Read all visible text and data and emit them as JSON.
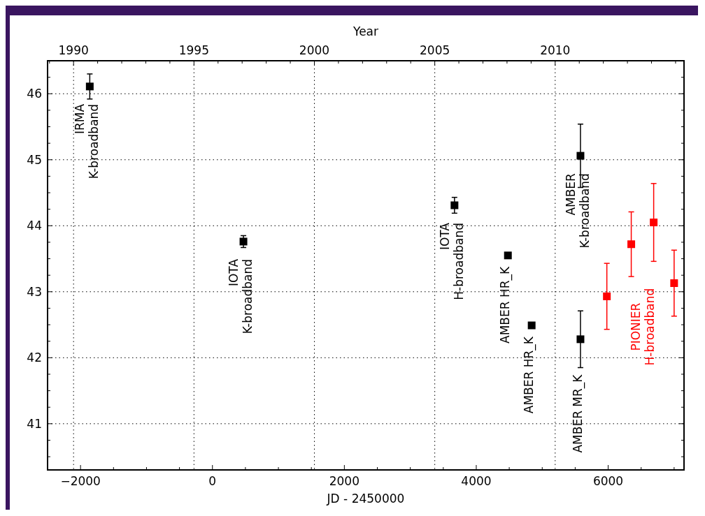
{
  "chart_data": {
    "type": "scatter",
    "xlabel": "JD - 2450000",
    "x2label": "Year",
    "xlim": [
      -2500,
      7150
    ],
    "xticks": [
      {
        "value": -2500,
        "label": null
      },
      -2000,
      {
        "value": -1500,
        "label": null
      },
      {
        "value": -1000,
        "label": null
      },
      {
        "value": -500,
        "label": null
      },
      0,
      {
        "value": 500,
        "label": null
      },
      {
        "value": 1000,
        "label": null
      },
      {
        "value": 1500,
        "label": null
      },
      2000,
      {
        "value": 2500,
        "label": null
      },
      {
        "value": 3000,
        "label": null
      },
      {
        "value": 3500,
        "label": null
      },
      4000,
      {
        "value": 4500,
        "label": null
      },
      {
        "value": 5000,
        "label": null
      },
      {
        "value": 5500,
        "label": null
      },
      6000,
      {
        "value": 6500,
        "label": null
      },
      {
        "value": 7000,
        "label": null
      }
    ],
    "x2lim": [
      1988.92,
      2015.35
    ],
    "x2ticks": [
      {
        "value": 1989,
        "label": null
      },
      1990,
      {
        "value": 1991,
        "label": null
      },
      {
        "value": 1992,
        "label": null
      },
      {
        "value": 1993,
        "label": null
      },
      {
        "value": 1994,
        "label": null
      },
      1995,
      {
        "value": 1996,
        "label": null
      },
      {
        "value": 1997,
        "label": null
      },
      {
        "value": 1998,
        "label": null
      },
      {
        "value": 1999,
        "label": null
      },
      2000,
      {
        "value": 2001,
        "label": null
      },
      {
        "value": 2002,
        "label": null
      },
      {
        "value": 2003,
        "label": null
      },
      {
        "value": 2004,
        "label": null
      },
      2005,
      {
        "value": 2006,
        "label": null
      },
      {
        "value": 2007,
        "label": null
      },
      {
        "value": 2008,
        "label": null
      },
      {
        "value": 2009,
        "label": null
      },
      2010,
      {
        "value": 2011,
        "label": null
      },
      {
        "value": 2012,
        "label": null
      },
      {
        "value": 2013,
        "label": null
      },
      {
        "value": 2014,
        "label": null
      },
      {
        "value": 2015,
        "label": null
      }
    ],
    "ylim": [
      40.3,
      46.5
    ],
    "yticks": [
      {
        "value": 40.5,
        "label": null
      },
      {
        "value": 40.75,
        "label": null
      },
      41,
      {
        "value": 41.25,
        "label": null
      },
      {
        "value": 41.5,
        "label": null
      },
      {
        "value": 41.75,
        "label": null
      },
      42,
      {
        "value": 42.25,
        "label": null
      },
      {
        "value": 42.5,
        "label": null
      },
      {
        "value": 42.75,
        "label": null
      },
      43,
      {
        "value": 43.25,
        "label": null
      },
      {
        "value": 43.5,
        "label": null
      },
      {
        "value": 43.75,
        "label": null
      },
      44,
      {
        "value": 44.25,
        "label": null
      },
      {
        "value": 44.5,
        "label": null
      },
      {
        "value": 44.75,
        "label": null
      },
      45,
      {
        "value": 45.25,
        "label": null
      },
      {
        "value": 45.5,
        "label": null
      },
      {
        "value": 45.75,
        "label": null
      },
      46,
      {
        "value": 46.25,
        "label": null
      }
    ],
    "grid": true,
    "marker": "square",
    "series": [
      {
        "color": "#000000",
        "x": [
          -1860,
          470,
          3670,
          4480,
          4840,
          5580,
          5580
        ],
        "values": [
          46.11,
          43.76,
          44.31,
          43.55,
          42.49,
          45.06,
          42.28
        ],
        "errors": [
          0.19,
          0.09,
          0.12,
          null,
          null,
          0.48,
          0.43
        ]
      },
      {
        "name": "PIONIER\nH-broadband",
        "color": "#ff0000",
        "x": [
          5980,
          6350,
          6690,
          7000
        ],
        "values": [
          42.93,
          43.72,
          44.05,
          43.13
        ],
        "errors": [
          0.5,
          0.49,
          0.59,
          0.5
        ]
      }
    ],
    "annotations": [
      {
        "text": "IRMA\nK-broadband",
        "x": -1860,
        "y": 46.11
      },
      {
        "text": "IOTA\nK-broadband",
        "x": 470,
        "y": 43.76
      },
      {
        "text": "IOTA\nH-broadband",
        "x": 3670,
        "y": 44.31
      },
      {
        "text": "AMBER HR_K",
        "x": 4480,
        "y": 43.55
      },
      {
        "text": "AMBER HR_K",
        "x": 4840,
        "y": 42.49
      },
      {
        "text": "AMBER\nK-broadband",
        "x": 5580,
        "y": 45.06
      },
      {
        "text": "AMBER MR_K",
        "x": 5580,
        "y": 42.28
      }
    ]
  }
}
